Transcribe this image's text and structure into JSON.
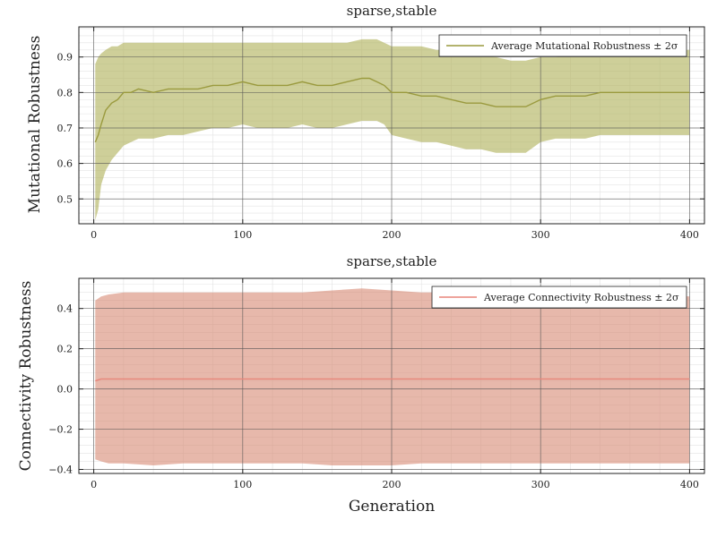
{
  "chart_data": [
    {
      "type": "line",
      "title": "sparse,stable",
      "xlabel": "",
      "ylabel": "Mutational Robustness",
      "xlim": [
        -10,
        410
      ],
      "ylim": [
        0.43,
        0.985
      ],
      "xticks": [
        0,
        100,
        200,
        300,
        400
      ],
      "yticks": [
        0.5,
        0.6,
        0.7,
        0.8,
        0.9
      ],
      "ytick_labels": [
        "0.5",
        "0.6",
        "0.7",
        "0.8",
        "0.9"
      ],
      "grid": true,
      "legend_position": "top-right",
      "series": [
        {
          "name": "Average Mutational Robustness ± 2σ",
          "color": "#9a9a3e",
          "band_color": "#b0b25a",
          "x": [
            1,
            3,
            5,
            8,
            12,
            16,
            20,
            25,
            30,
            40,
            50,
            60,
            70,
            80,
            90,
            100,
            110,
            120,
            130,
            140,
            150,
            160,
            170,
            180,
            185,
            190,
            195,
            200,
            210,
            220,
            230,
            240,
            250,
            260,
            270,
            280,
            290,
            300,
            310,
            320,
            330,
            340,
            350,
            360,
            370,
            380,
            390,
            400
          ],
          "mean": [
            0.66,
            0.68,
            0.71,
            0.75,
            0.77,
            0.78,
            0.8,
            0.8,
            0.81,
            0.8,
            0.81,
            0.81,
            0.81,
            0.82,
            0.82,
            0.83,
            0.82,
            0.82,
            0.82,
            0.83,
            0.82,
            0.82,
            0.83,
            0.84,
            0.84,
            0.83,
            0.82,
            0.8,
            0.8,
            0.79,
            0.79,
            0.78,
            0.77,
            0.77,
            0.76,
            0.76,
            0.76,
            0.78,
            0.79,
            0.79,
            0.79,
            0.8,
            0.8,
            0.8,
            0.8,
            0.8,
            0.8,
            0.8
          ],
          "upper": [
            0.88,
            0.9,
            0.91,
            0.92,
            0.93,
            0.93,
            0.94,
            0.94,
            0.94,
            0.94,
            0.94,
            0.94,
            0.94,
            0.94,
            0.94,
            0.94,
            0.94,
            0.94,
            0.94,
            0.94,
            0.94,
            0.94,
            0.94,
            0.95,
            0.95,
            0.95,
            0.94,
            0.93,
            0.93,
            0.93,
            0.92,
            0.92,
            0.91,
            0.91,
            0.9,
            0.89,
            0.89,
            0.9,
            0.9,
            0.91,
            0.91,
            0.91,
            0.92,
            0.92,
            0.92,
            0.92,
            0.92,
            0.92
          ],
          "lower": [
            0.44,
            0.47,
            0.54,
            0.58,
            0.61,
            0.63,
            0.65,
            0.66,
            0.67,
            0.67,
            0.68,
            0.68,
            0.69,
            0.7,
            0.7,
            0.71,
            0.7,
            0.7,
            0.7,
            0.71,
            0.7,
            0.7,
            0.71,
            0.72,
            0.72,
            0.72,
            0.71,
            0.68,
            0.67,
            0.66,
            0.66,
            0.65,
            0.64,
            0.64,
            0.63,
            0.63,
            0.63,
            0.66,
            0.67,
            0.67,
            0.67,
            0.68,
            0.68,
            0.68,
            0.68,
            0.68,
            0.68,
            0.68
          ]
        }
      ]
    },
    {
      "type": "line",
      "title": "sparse,stable",
      "xlabel": "Generation",
      "ylabel": "Connectivity Robustness",
      "xlim": [
        -10,
        410
      ],
      "ylim": [
        -0.42,
        0.55
      ],
      "xticks": [
        0,
        100,
        200,
        300,
        400
      ],
      "yticks": [
        -0.4,
        -0.2,
        0.0,
        0.2,
        0.4
      ],
      "ytick_labels": [
        "−0.4",
        "−0.2",
        "0.0",
        "0.2",
        "0.4"
      ],
      "grid": true,
      "legend_position": "top-right",
      "series": [
        {
          "name": "Average Connectivity Robustness ± 2σ",
          "color": "#e8857a",
          "band_color": "#d98c78",
          "x": [
            1,
            5,
            10,
            20,
            40,
            60,
            80,
            100,
            120,
            140,
            160,
            180,
            200,
            220,
            240,
            260,
            280,
            300,
            320,
            340,
            360,
            380,
            400
          ],
          "mean": [
            0.04,
            0.05,
            0.05,
            0.05,
            0.05,
            0.05,
            0.05,
            0.05,
            0.05,
            0.05,
            0.05,
            0.05,
            0.05,
            0.05,
            0.05,
            0.05,
            0.05,
            0.05,
            0.05,
            0.05,
            0.05,
            0.05,
            0.05
          ],
          "upper": [
            0.44,
            0.46,
            0.47,
            0.48,
            0.48,
            0.48,
            0.48,
            0.48,
            0.48,
            0.48,
            0.49,
            0.5,
            0.49,
            0.48,
            0.48,
            0.47,
            0.47,
            0.47,
            0.47,
            0.47,
            0.47,
            0.47,
            0.46
          ],
          "lower": [
            -0.35,
            -0.36,
            -0.37,
            -0.37,
            -0.38,
            -0.37,
            -0.37,
            -0.37,
            -0.37,
            -0.37,
            -0.38,
            -0.38,
            -0.38,
            -0.37,
            -0.37,
            -0.37,
            -0.37,
            -0.37,
            -0.37,
            -0.37,
            -0.37,
            -0.37,
            -0.37
          ]
        }
      ]
    }
  ]
}
